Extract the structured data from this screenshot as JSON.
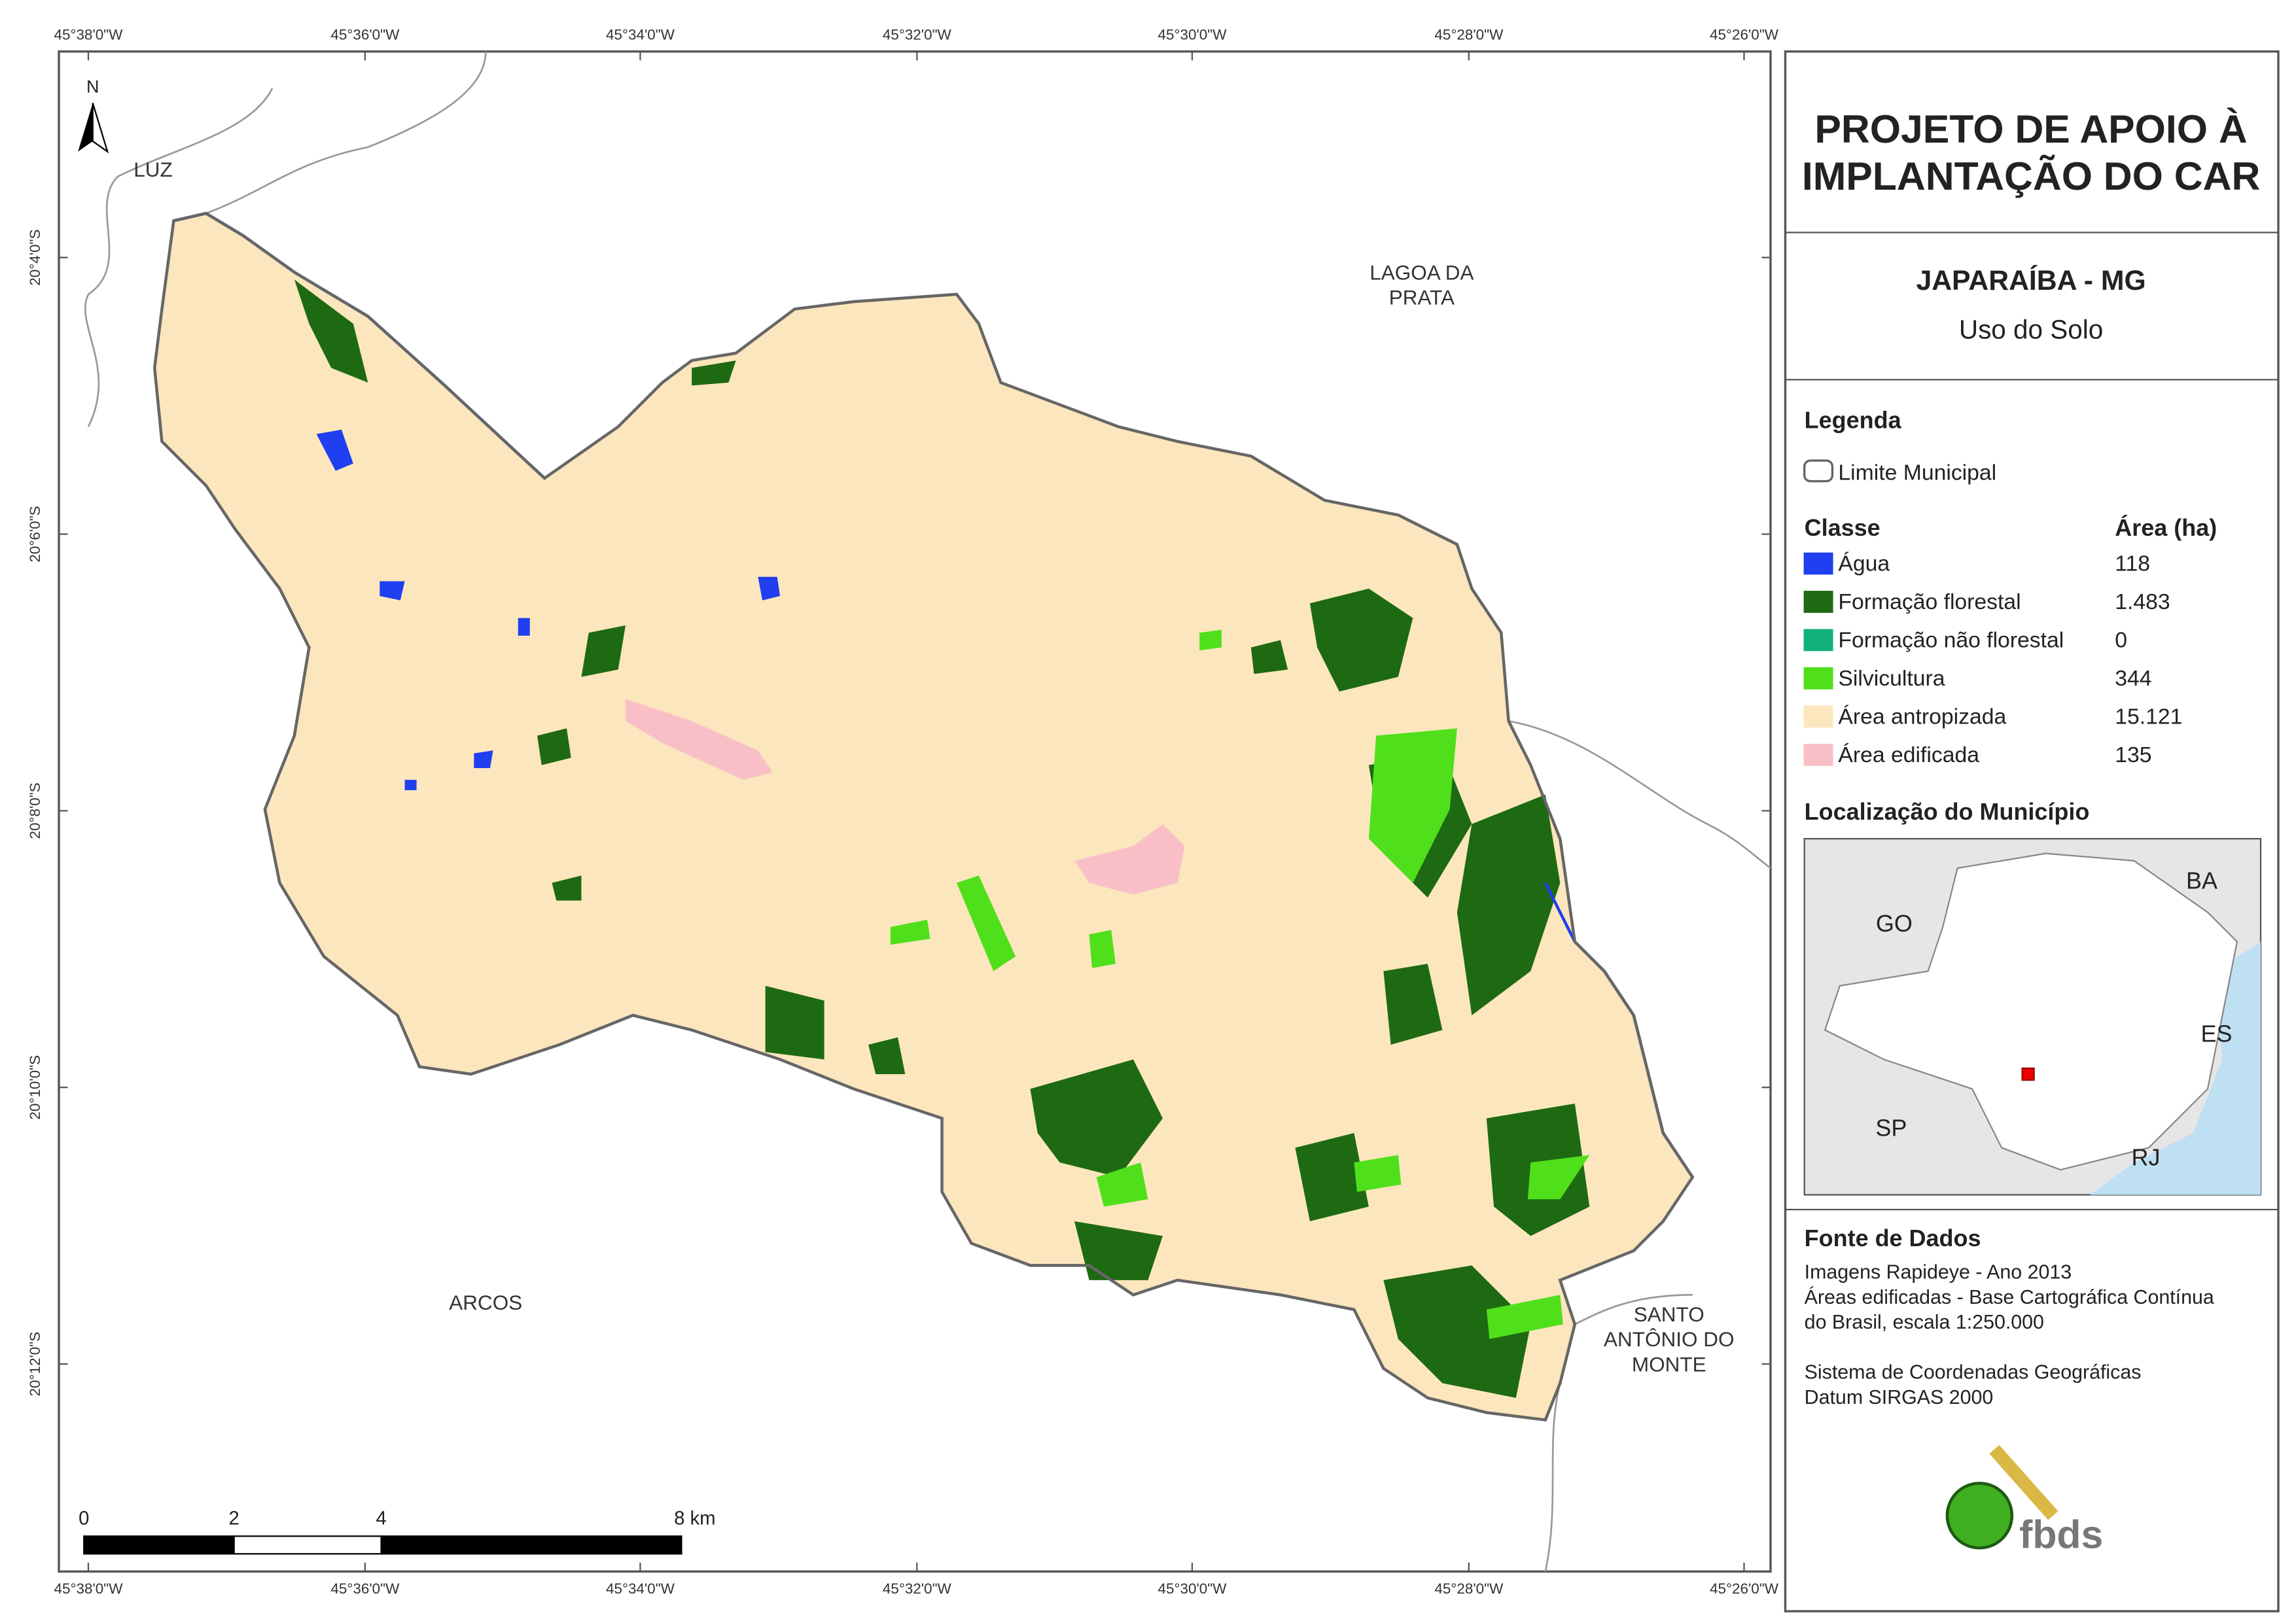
{
  "map": {
    "x_ticks": [
      "45°38'0\"W",
      "45°36'0\"W",
      "45°34'0\"W",
      "45°32'0\"W",
      "45°30'0\"W",
      "45°28'0\"W",
      "45°26'0\"W"
    ],
    "y_ticks": [
      "20°4'0\"S",
      "20°6'0\"S",
      "20°8'0\"S",
      "20°10'0\"S",
      "20°12'0\"S"
    ],
    "places": [
      [
        "LUZ"
      ],
      [
        "LAGOA DA",
        "PRATA"
      ],
      [
        "ARCOS"
      ],
      [
        "SANTO",
        "ANTÔNIO DO",
        "MONTE"
      ]
    ],
    "north": "N",
    "scale_bar": [
      "0",
      "2",
      "4",
      "8 km"
    ]
  },
  "panel": {
    "title": [
      "PROJETO DE APOIO À",
      "IMPLANTAÇÃO DO CAR"
    ],
    "municipality": "JAPARAÍBA - MG",
    "subtitle": "Uso do Solo",
    "legend": {
      "heading": "Legenda",
      "boundary": "Limite Municipal",
      "class_header": "Classe",
      "area_header": "Área (ha)",
      "classes": [
        {
          "name": "Água",
          "color": "#1f3ff0",
          "area": "118"
        },
        {
          "name": "Formação florestal",
          "color": "#1d6a12",
          "area": "1.483"
        },
        {
          "name": "Formação não florestal",
          "color": "#12b07a",
          "area": "0"
        },
        {
          "name": "Silvicultura",
          "color": "#4fe01b",
          "area": "344"
        },
        {
          "name": "Área antropizada",
          "color": "#fce6bd",
          "area": "15.121"
        },
        {
          "name": "Área edificada",
          "color": "#f8c0c6",
          "area": "135"
        }
      ]
    },
    "location": {
      "heading": "Localização do Município",
      "states": [
        "GO",
        "BA",
        "ES",
        "SP",
        "RJ"
      ]
    },
    "sources": {
      "heading": "Fonte de Dados",
      "lines": [
        "Imagens Rapideye - Ano 2013",
        "Áreas edificadas - Base Cartográfica Contínua",
        "do Brasil, escala 1:250.000",
        "",
        "Sistema de Coordenadas Geográficas",
        "Datum SIRGAS 2000"
      ]
    },
    "logo": "fbds"
  }
}
